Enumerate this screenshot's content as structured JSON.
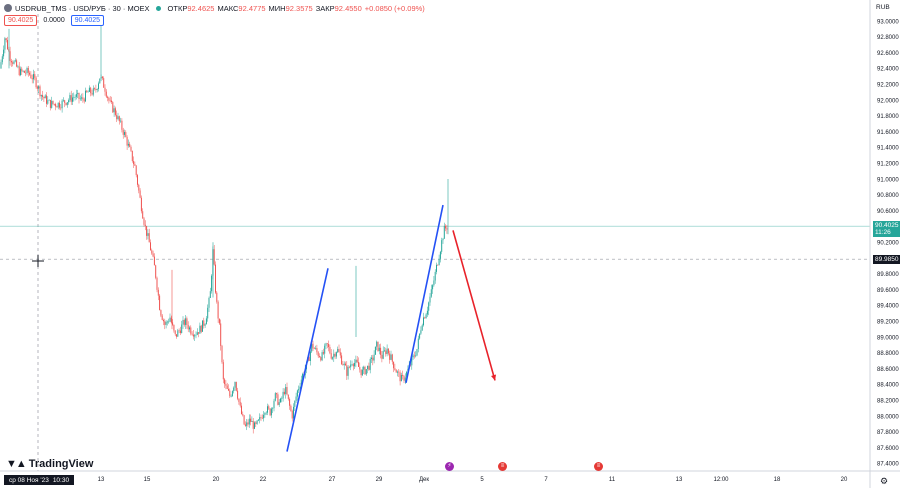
{
  "header": {
    "symbol": "USDRUB_TMS · USD/РУБ · 30 · MOEX",
    "ohlc": [
      {
        "key": "ОТКР",
        "value": "92.4625"
      },
      {
        "key": "МАКС",
        "value": "92.4775"
      },
      {
        "key": "МИН",
        "value": "92.3575"
      },
      {
        "key": "ЗАКР",
        "value": "92.4550"
      }
    ],
    "change": "+0.0850 (+0.09%)"
  },
  "bid_ask": {
    "sell": "90.4025",
    "spread": "0.0000",
    "buy": "90.4025"
  },
  "currency": "RUB",
  "branding": {
    "name": "TradingView"
  },
  "crosshair": {
    "date_label": "ср 08 Ноя '23",
    "time_label": "10:30",
    "price_label": "89.9850"
  },
  "current_price": {
    "price": "90.4025",
    "countdown": "11:26"
  },
  "colors": {
    "up": "#26a69a",
    "down": "#ef5350",
    "trend_lines": "#2451f5",
    "arrow": "#e8222a",
    "price_line": "#26a69a"
  },
  "chart_data": {
    "type": "candlestick",
    "ylim": [
      87.32,
      93.17
    ],
    "y_ticks": [
      "93.0000",
      "92.8000",
      "92.6000",
      "92.4000",
      "92.2000",
      "92.0000",
      "91.8000",
      "91.6000",
      "91.4000",
      "91.2000",
      "91.0000",
      "90.8000",
      "90.6000",
      "90.4000",
      "90.2000",
      "90.0000",
      "89.8000",
      "89.6000",
      "89.4000",
      "89.2000",
      "89.0000",
      "88.8000",
      "88.6000",
      "88.4000",
      "88.2000",
      "88.0000",
      "87.8000",
      "87.6000",
      "87.4000"
    ],
    "x_ticks": [
      "13",
      "15",
      "20",
      "22",
      "27",
      "29",
      "Дек",
      "5",
      "7",
      "11",
      "13",
      "12:00",
      "18",
      "20"
    ],
    "price_path": [
      [
        0,
        92.4
      ],
      [
        5,
        92.8
      ],
      [
        10,
        92.55
      ],
      [
        15,
        92.45
      ],
      [
        20,
        92.35
      ],
      [
        28,
        92.35
      ],
      [
        35,
        92.25
      ],
      [
        42,
        92.05
      ],
      [
        50,
        91.95
      ],
      [
        60,
        91.95
      ],
      [
        68,
        92.0
      ],
      [
        75,
        92.05
      ],
      [
        82,
        92.0
      ],
      [
        88,
        92.1
      ],
      [
        95,
        92.1
      ],
      [
        100,
        92.3
      ],
      [
        105,
        92.15
      ],
      [
        110,
        91.95
      ],
      [
        115,
        91.85
      ],
      [
        120,
        91.7
      ],
      [
        125,
        91.55
      ],
      [
        130,
        91.35
      ],
      [
        135,
        91.15
      ],
      [
        140,
        90.75
      ],
      [
        145,
        90.4
      ],
      [
        150,
        90.15
      ],
      [
        155,
        89.85
      ],
      [
        160,
        89.35
      ],
      [
        165,
        89.15
      ],
      [
        170,
        89.25
      ],
      [
        175,
        89.0
      ],
      [
        180,
        89.1
      ],
      [
        185,
        89.2
      ],
      [
        190,
        89.1
      ],
      [
        195,
        89.05
      ],
      [
        200,
        89.1
      ],
      [
        205,
        89.2
      ],
      [
        210,
        89.5
      ],
      [
        213,
        90.1
      ],
      [
        216,
        89.5
      ],
      [
        220,
        89.05
      ],
      [
        223,
        88.45
      ],
      [
        226,
        88.35
      ],
      [
        230,
        88.25
      ],
      [
        235,
        88.45
      ],
      [
        240,
        88.1
      ],
      [
        245,
        87.85
      ],
      [
        250,
        87.95
      ],
      [
        255,
        87.85
      ],
      [
        260,
        87.95
      ],
      [
        265,
        88.1
      ],
      [
        270,
        88.05
      ],
      [
        275,
        88.25
      ],
      [
        280,
        88.15
      ],
      [
        285,
        88.35
      ],
      [
        288,
        88.2
      ],
      [
        292,
        88.0
      ],
      [
        297,
        88.3
      ],
      [
        302,
        88.5
      ],
      [
        307,
        88.65
      ],
      [
        312,
        88.9
      ],
      [
        317,
        88.8
      ],
      [
        322,
        88.75
      ],
      [
        327,
        88.9
      ],
      [
        332,
        88.75
      ],
      [
        337,
        88.85
      ],
      [
        342,
        88.7
      ],
      [
        347,
        88.55
      ],
      [
        352,
        88.7
      ],
      [
        357,
        88.65
      ],
      [
        362,
        88.55
      ],
      [
        367,
        88.6
      ],
      [
        372,
        88.7
      ],
      [
        377,
        88.9
      ],
      [
        382,
        88.75
      ],
      [
        387,
        88.85
      ],
      [
        392,
        88.7
      ],
      [
        397,
        88.55
      ],
      [
        402,
        88.45
      ],
      [
        407,
        88.55
      ],
      [
        412,
        88.7
      ],
      [
        417,
        88.85
      ],
      [
        422,
        89.2
      ],
      [
        427,
        89.35
      ],
      [
        432,
        89.6
      ],
      [
        436,
        89.85
      ],
      [
        440,
        90.1
      ],
      [
        444,
        90.35
      ],
      [
        447,
        90.4
      ]
    ],
    "annotations": [
      {
        "type": "line",
        "color": "#2451f5",
        "from": {
          "x": 287,
          "y": 87.55
        },
        "to": {
          "x": 328,
          "y": 89.87
        }
      },
      {
        "type": "line",
        "color": "#2451f5",
        "from": {
          "x": 406,
          "y": 88.42
        },
        "to": {
          "x": 443,
          "y": 90.67
        }
      },
      {
        "type": "arrow",
        "color": "#e8222a",
        "from": {
          "x": 453,
          "y": 90.35
        },
        "to": {
          "x": 495,
          "y": 88.45
        }
      }
    ]
  }
}
